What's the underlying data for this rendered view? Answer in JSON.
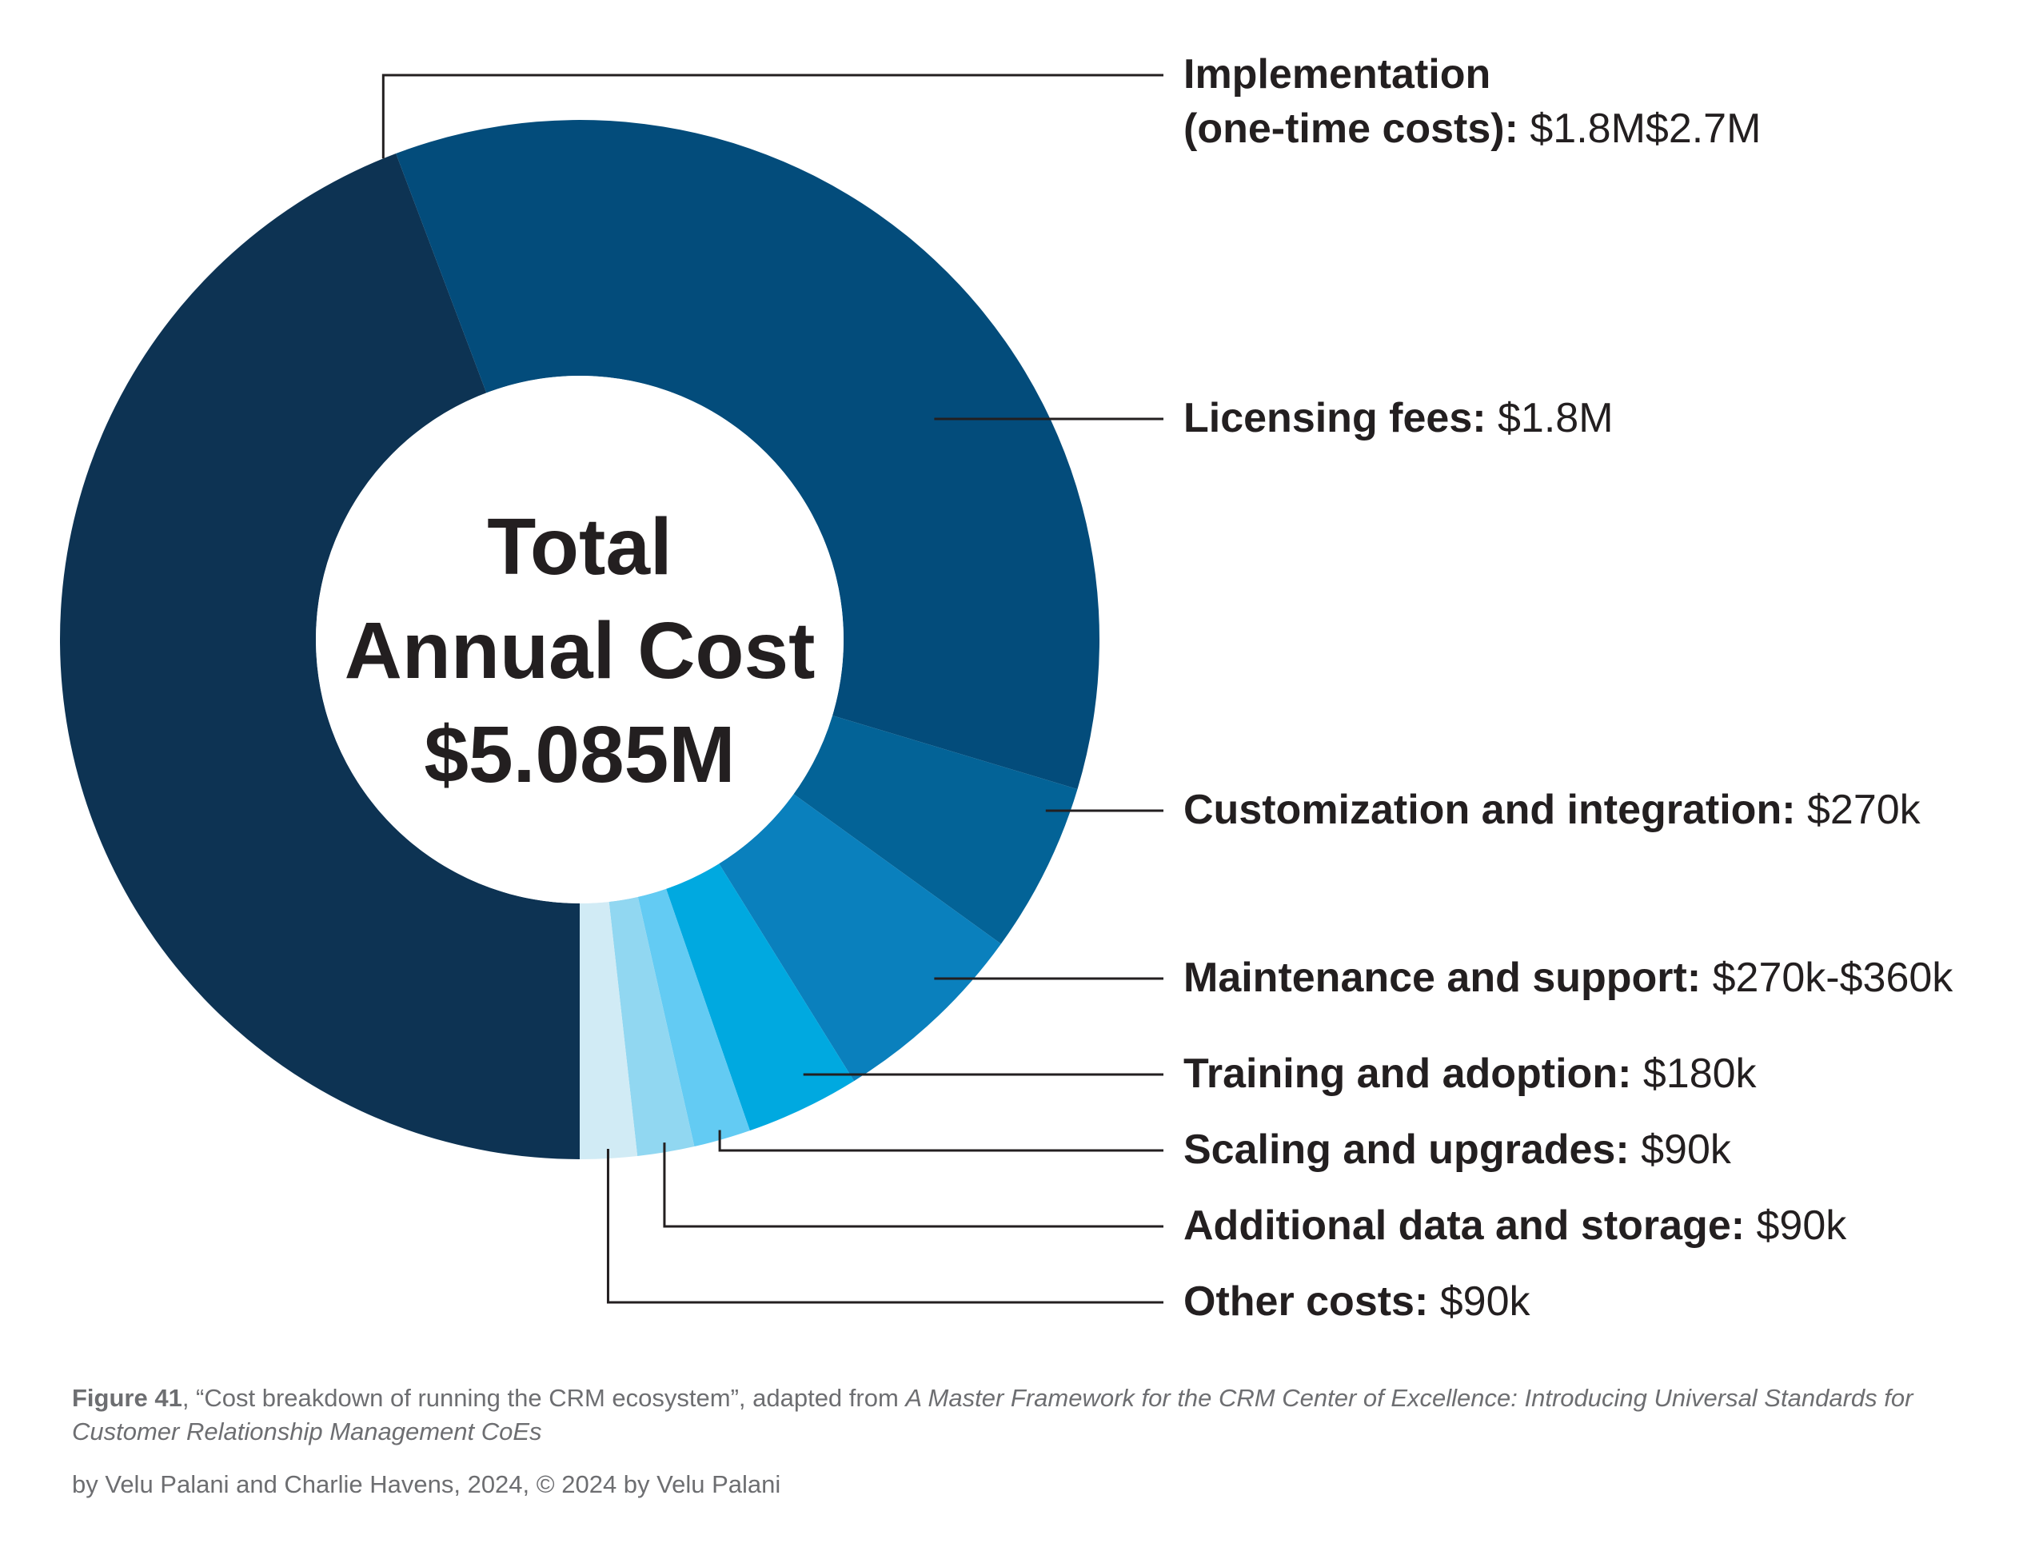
{
  "chart_data": {
    "type": "pie",
    "center_text": [
      "Total",
      "Annual Cost",
      "$5.085M"
    ],
    "slices": [
      {
        "label": "Implementation (one-time costs)",
        "value_text": "$1.8M$2.7M",
        "value": 2.25,
        "color": "#0d3353"
      },
      {
        "label": "Licensing fees",
        "value_text": "$1.8M",
        "value": 1.8,
        "color": "#034c7b"
      },
      {
        "label": "Customization and integration",
        "value_text": "$270k",
        "value": 0.27,
        "color": "#036397"
      },
      {
        "label": "Maintenance and support",
        "value_text": "$270k-$360k",
        "value": 0.315,
        "color": "#0a80bd"
      },
      {
        "label": "Training and adoption",
        "value_text": "$180k",
        "value": 0.18,
        "color": "#00a9e0"
      },
      {
        "label": "Scaling and upgrades",
        "value_text": "$90k",
        "value": 0.09,
        "color": "#63cbf3"
      },
      {
        "label": "Additional data and storage",
        "value_text": "$90k",
        "value": 0.09,
        "color": "#91d7f1"
      },
      {
        "label": "Other costs",
        "value_text": "$90k",
        "value": 0.09,
        "color": "#d1ebf5"
      }
    ]
  },
  "caption": {
    "figure_number": "Figure 41",
    "title_part": ", “Cost breakdown of running the CRM ecosystem”, adapted from ",
    "book_title": "A Master Framework for the CRM Center of Excellence: Introducing Universal Standards for Customer Relationship Management CoEs",
    "credit": "by Velu Palani and Charlie Havens, 2024, © 2024 by Velu Palani"
  }
}
